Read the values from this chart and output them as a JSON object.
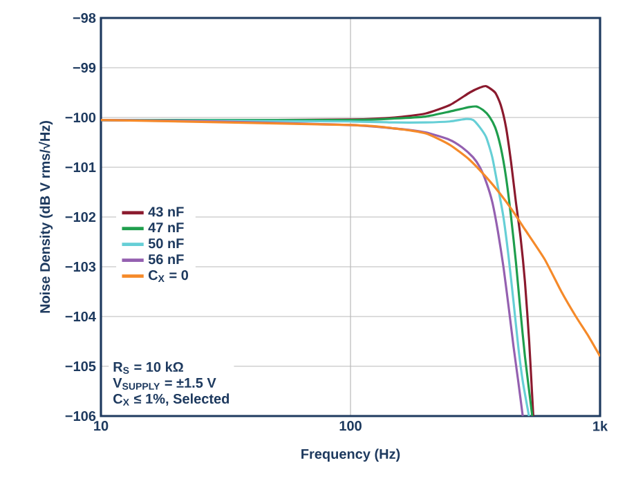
{
  "chart_data": {
    "type": "line",
    "xlabel": "Frequency (Hz)",
    "ylabel": "Noise Density (dB V rms/√Hz)",
    "log": "x",
    "grid": true,
    "legend": "left",
    "line_style": "solid",
    "xlim": [
      10,
      1000
    ],
    "xticks": [
      {
        "value": 10,
        "label": "10"
      },
      {
        "value": 100,
        "label": "100"
      },
      {
        "value": 1000,
        "label": "1k"
      }
    ],
    "ylim": [
      -106,
      -98
    ],
    "yticks": [
      {
        "value": -98,
        "label": "−98"
      },
      {
        "value": -99,
        "label": "−99"
      },
      {
        "value": -100,
        "label": "−100"
      },
      {
        "value": -101,
        "label": "−101"
      },
      {
        "value": -102,
        "label": "−102"
      },
      {
        "value": -103,
        "label": "−103"
      },
      {
        "value": -104,
        "label": "−104"
      },
      {
        "value": -105,
        "label": "−105"
      },
      {
        "value": -106,
        "label": "−106"
      }
    ],
    "series": [
      {
        "name": "43 nF",
        "color": "#8b1a2e",
        "x": [
          10,
          50,
          100,
          150,
          200,
          250,
          300,
          330,
          350,
          380,
          400,
          420,
          440,
          460,
          480,
          500,
          520,
          540
        ],
        "values": [
          -100.05,
          -100.05,
          -100.04,
          -100.0,
          -99.92,
          -99.75,
          -99.5,
          -99.4,
          -99.37,
          -99.5,
          -99.75,
          -100.2,
          -100.9,
          -101.7,
          -102.4,
          -103.3,
          -104.5,
          -106
        ]
      },
      {
        "name": "47 nF",
        "color": "#1f9e4d",
        "x": [
          10,
          100,
          150,
          200,
          250,
          300,
          320,
          340,
          360,
          380,
          400,
          420,
          440,
          460,
          480,
          500,
          535
        ],
        "values": [
          -100.05,
          -100.05,
          -100.02,
          -99.98,
          -99.88,
          -99.79,
          -99.78,
          -99.85,
          -99.98,
          -100.2,
          -100.6,
          -101.2,
          -102.0,
          -102.9,
          -103.9,
          -104.8,
          -106
        ]
      },
      {
        "name": "50 nF",
        "color": "#66cfd6",
        "x": [
          10,
          100,
          150,
          200,
          250,
          290,
          310,
          330,
          350,
          370,
          390,
          410,
          430,
          450,
          470,
          490,
          519
        ],
        "values": [
          -100.05,
          -100.08,
          -100.1,
          -100.1,
          -100.08,
          -100.03,
          -100.05,
          -100.2,
          -100.4,
          -100.8,
          -101.4,
          -102.0,
          -102.8,
          -103.7,
          -104.6,
          -105.3,
          -106
        ]
      },
      {
        "name": "56 nF",
        "color": "#9460b0",
        "x": [
          10,
          30,
          100,
          150,
          200,
          250,
          280,
          310,
          330,
          350,
          370,
          390,
          410,
          430,
          450,
          470,
          490
        ],
        "values": [
          -100.05,
          -100.08,
          -100.15,
          -100.22,
          -100.3,
          -100.45,
          -100.6,
          -100.8,
          -101.0,
          -101.3,
          -101.7,
          -102.3,
          -103.0,
          -103.8,
          -104.6,
          -105.3,
          -106
        ]
      },
      {
        "name": "C$_{X}$ = 0",
        "color": "#f58a2a",
        "x": [
          10,
          100,
          150,
          200,
          250,
          300,
          350,
          400,
          450,
          500,
          600,
          700,
          800,
          900,
          1000
        ],
        "values": [
          -100.05,
          -100.15,
          -100.22,
          -100.32,
          -100.55,
          -100.85,
          -101.2,
          -101.55,
          -101.9,
          -102.25,
          -102.85,
          -103.5,
          -104.0,
          -104.4,
          -104.8
        ]
      }
    ],
    "annotations": [
      "R$_{S}$ = 10 kΩ",
      "V$_{SUPPLY}$ = ±1.5 V",
      "C$_{X}$ ≤ 1%, Selected"
    ]
  }
}
